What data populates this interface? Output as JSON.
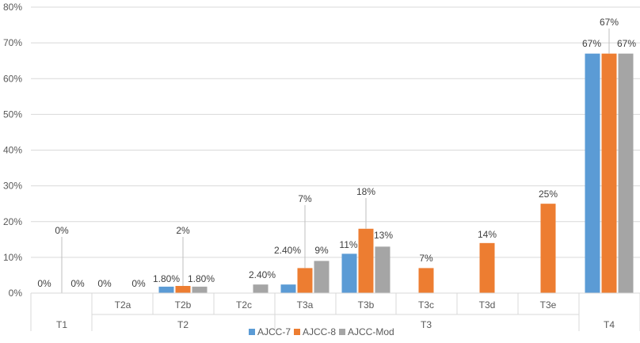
{
  "chart_data": {
    "type": "bar",
    "title": "",
    "xlabel": "",
    "ylabel": "",
    "ylim": [
      0,
      80
    ],
    "yticks": [
      0,
      10,
      20,
      30,
      40,
      50,
      60,
      70,
      80
    ],
    "ytick_labels": [
      "0%",
      "10%",
      "20%",
      "30%",
      "40%",
      "50%",
      "60%",
      "70%",
      "80%"
    ],
    "grid": true,
    "legend_position": "bottom-center",
    "groups": [
      {
        "label": "T1",
        "subs": [
          ""
        ]
      },
      {
        "label": "T2",
        "subs": [
          "T2a",
          "T2b",
          "T2c"
        ]
      },
      {
        "label": "T3",
        "subs": [
          "T3a",
          "T3b",
          "T3c",
          "T3d",
          "T3e"
        ]
      },
      {
        "label": "T4",
        "subs": [
          ""
        ]
      }
    ],
    "categories": [
      "T1",
      "T2a",
      "T2b",
      "T2c",
      "T3a",
      "T3b",
      "T3c",
      "T3d",
      "T3e",
      "T4"
    ],
    "series": [
      {
        "name": "AJCC-7",
        "color": "#5B9BD5",
        "values": [
          0,
          0,
          1.8,
          null,
          2.4,
          11,
          null,
          null,
          null,
          67
        ],
        "labels": [
          "0%",
          "0%",
          "1.80%",
          "",
          "2.40%",
          "11%",
          "",
          "",
          "",
          "67%"
        ]
      },
      {
        "name": "AJCC-8",
        "color": "#ED7D31",
        "values": [
          0,
          null,
          2,
          null,
          7,
          18,
          7,
          14,
          25,
          67
        ],
        "labels": [
          "0%",
          "",
          "2%",
          "",
          "7%",
          "18%",
          "7%",
          "14%",
          "25%",
          "67%"
        ]
      },
      {
        "name": "AJCC-Mod",
        "color": "#A5A5A5",
        "values": [
          0,
          0,
          1.8,
          2.4,
          9,
          13,
          null,
          null,
          null,
          67
        ],
        "labels": [
          "0%",
          "0%",
          "1.80%",
          "2.40%",
          "9%",
          "13%",
          "",
          "",
          "",
          "67%"
        ]
      }
    ]
  }
}
